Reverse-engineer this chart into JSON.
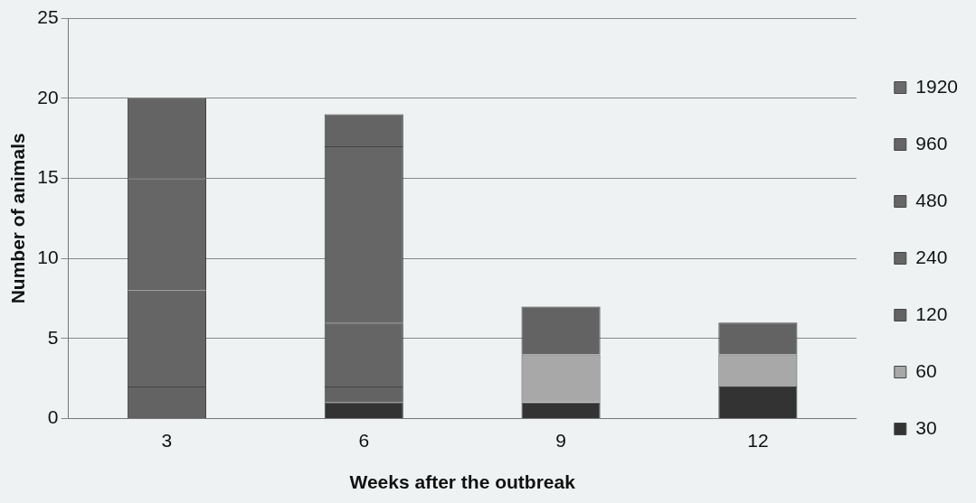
{
  "chart_data": {
    "type": "bar",
    "stacked": true,
    "xlabel": "Weeks after the outbreak",
    "ylabel": "Number of animals",
    "categories": [
      "3",
      "6",
      "9",
      "12"
    ],
    "series": [
      {
        "name": "30",
        "color": "#333333",
        "values": [
          0,
          1,
          1,
          2
        ]
      },
      {
        "name": "60",
        "color": "#a8a8a8",
        "values": [
          0,
          0,
          3,
          2
        ]
      },
      {
        "name": "120",
        "color": "#636363",
        "values": [
          2,
          1,
          3,
          2
        ]
      },
      {
        "name": "240",
        "color": "#656565",
        "values": [
          6,
          4,
          0,
          0
        ]
      },
      {
        "name": "480",
        "color": "#666666",
        "values": [
          7,
          11,
          0,
          0
        ]
      },
      {
        "name": "960",
        "color": "#646464",
        "values": [
          5,
          2,
          0,
          0
        ]
      },
      {
        "name": "1920",
        "color": "#6a6a6a",
        "values": [
          0,
          0,
          0,
          0
        ]
      }
    ],
    "ylim": [
      0,
      25
    ],
    "yticks": [
      0,
      5,
      10,
      15,
      20,
      25
    ],
    "grid": "y",
    "legend": "right"
  }
}
